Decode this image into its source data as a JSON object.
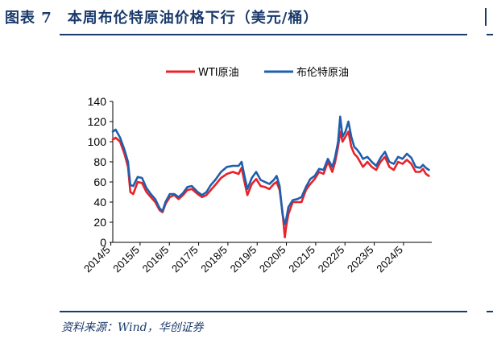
{
  "header": {
    "title": "图表 7　本周布伦特原油价格下行（美元/桶）"
  },
  "footer": {
    "source": "资料来源：Wind，华创证券"
  },
  "colors": {
    "wti": "#e8232a",
    "brent": "#1f5fad",
    "accent": "#1a3a6b"
  },
  "chart_data": {
    "type": "line",
    "title": "",
    "xlabel": "",
    "ylabel": "",
    "ylim": [
      0,
      140
    ],
    "y_ticks": [
      "0",
      "20",
      "40",
      "60",
      "80",
      "100",
      "120",
      "140"
    ],
    "x_tick_labels": [
      "2014/5",
      "2015/5",
      "2016/5",
      "2017/5",
      "2018/5",
      "2019/5",
      "2020/5",
      "2021/5",
      "2022/5",
      "2023/5",
      "2024/5"
    ],
    "x_range": [
      2014.4,
      2025.3
    ],
    "legend": [
      "WTI原油",
      "布伦特原油"
    ],
    "legend_position": "top-center",
    "series": [
      {
        "name": "WTI原油",
        "color": "#e8232a",
        "x": [
          2014.4,
          2014.5,
          2014.65,
          2014.8,
          2014.92,
          2015.0,
          2015.1,
          2015.25,
          2015.4,
          2015.55,
          2015.7,
          2015.85,
          2016.0,
          2016.1,
          2016.2,
          2016.35,
          2016.5,
          2016.65,
          2016.8,
          2016.95,
          2017.1,
          2017.3,
          2017.45,
          2017.6,
          2017.75,
          2017.9,
          2018.1,
          2018.3,
          2018.5,
          2018.7,
          2018.8,
          2018.9,
          2019.0,
          2019.15,
          2019.3,
          2019.45,
          2019.6,
          2019.75,
          2019.9,
          2020.0,
          2020.1,
          2020.2,
          2020.28,
          2020.32,
          2020.4,
          2020.55,
          2020.7,
          2020.85,
          2021.0,
          2021.15,
          2021.3,
          2021.45,
          2021.6,
          2021.75,
          2021.9,
          2022.0,
          2022.1,
          2022.17,
          2022.25,
          2022.35,
          2022.45,
          2022.55,
          2022.65,
          2022.75,
          2022.85,
          2022.95,
          2023.1,
          2023.25,
          2023.4,
          2023.55,
          2023.7,
          2023.85,
          2024.0,
          2024.15,
          2024.3,
          2024.45,
          2024.6,
          2024.75,
          2024.9,
          2025.0,
          2025.1,
          2025.2
        ],
        "values": [
          102,
          104,
          100,
          88,
          75,
          50,
          48,
          60,
          59,
          50,
          45,
          40,
          32,
          30,
          38,
          45,
          47,
          43,
          47,
          52,
          53,
          48,
          45,
          47,
          52,
          57,
          64,
          68,
          70,
          68,
          74,
          60,
          47,
          58,
          63,
          56,
          55,
          53,
          58,
          60,
          52,
          30,
          5,
          15,
          28,
          40,
          40,
          40,
          52,
          58,
          63,
          70,
          68,
          80,
          70,
          80,
          95,
          110,
          100,
          105,
          110,
          95,
          88,
          85,
          80,
          75,
          80,
          75,
          72,
          80,
          85,
          75,
          72,
          80,
          78,
          82,
          78,
          70,
          70,
          73,
          68,
          66
        ]
      },
      {
        "name": "布伦特原油",
        "color": "#1f5fad",
        "x": [
          2014.4,
          2014.5,
          2014.65,
          2014.8,
          2014.92,
          2015.0,
          2015.1,
          2015.25,
          2015.4,
          2015.55,
          2015.7,
          2015.85,
          2016.0,
          2016.1,
          2016.2,
          2016.35,
          2016.5,
          2016.65,
          2016.8,
          2016.95,
          2017.1,
          2017.3,
          2017.45,
          2017.6,
          2017.75,
          2017.9,
          2018.1,
          2018.3,
          2018.5,
          2018.7,
          2018.8,
          2018.9,
          2019.0,
          2019.15,
          2019.3,
          2019.45,
          2019.6,
          2019.75,
          2019.9,
          2020.0,
          2020.1,
          2020.2,
          2020.28,
          2020.32,
          2020.4,
          2020.55,
          2020.7,
          2020.85,
          2021.0,
          2021.15,
          2021.3,
          2021.45,
          2021.6,
          2021.75,
          2021.9,
          2022.0,
          2022.1,
          2022.17,
          2022.25,
          2022.35,
          2022.45,
          2022.55,
          2022.65,
          2022.75,
          2022.85,
          2022.95,
          2023.1,
          2023.25,
          2023.4,
          2023.55,
          2023.7,
          2023.85,
          2024.0,
          2024.15,
          2024.3,
          2024.45,
          2024.6,
          2024.75,
          2024.9,
          2025.0,
          2025.1,
          2025.2
        ],
        "values": [
          110,
          112,
          104,
          92,
          80,
          57,
          56,
          65,
          64,
          54,
          48,
          43,
          34,
          31,
          40,
          48,
          48,
          45,
          49,
          55,
          56,
          50,
          47,
          50,
          57,
          62,
          70,
          75,
          76,
          76,
          80,
          66,
          53,
          64,
          70,
          62,
          60,
          58,
          62,
          66,
          56,
          28,
          18,
          22,
          35,
          42,
          43,
          45,
          55,
          63,
          66,
          73,
          72,
          83,
          75,
          85,
          100,
          125,
          105,
          110,
          120,
          105,
          95,
          92,
          88,
          83,
          85,
          80,
          76,
          84,
          90,
          80,
          78,
          85,
          83,
          88,
          84,
          75,
          74,
          77,
          74,
          72
        ]
      }
    ]
  }
}
